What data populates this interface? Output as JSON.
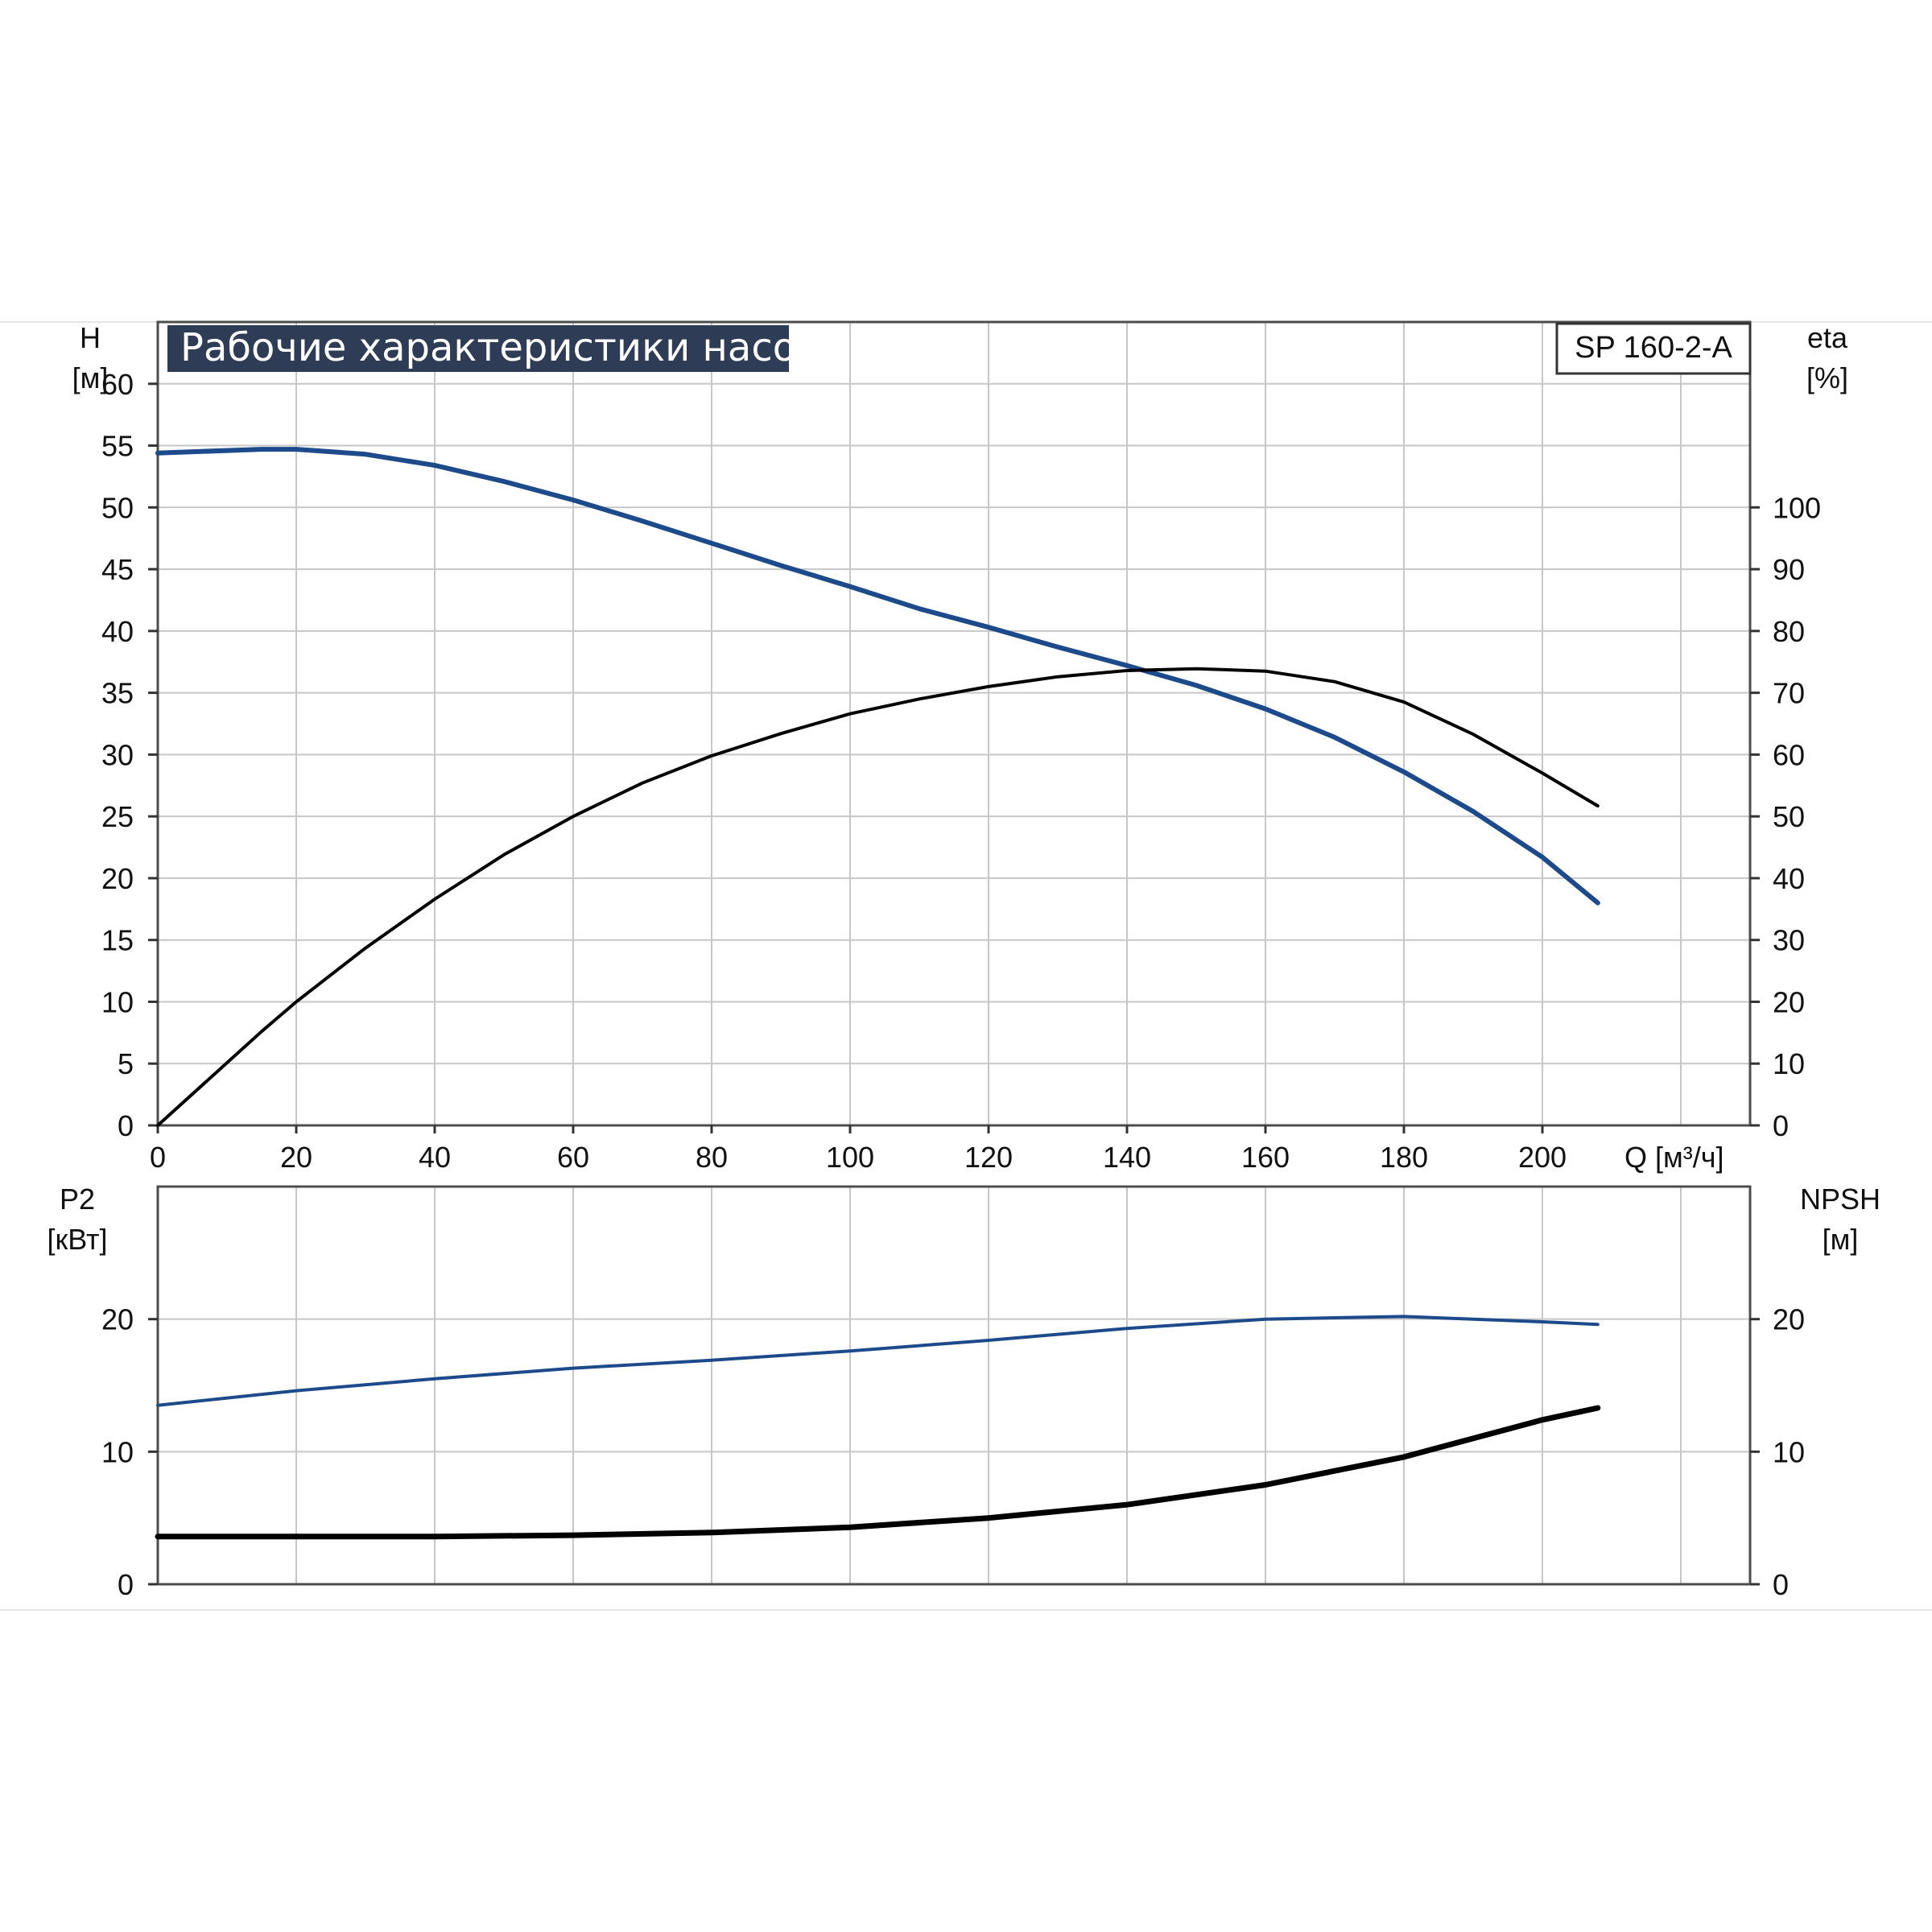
{
  "chart_data": [
    {
      "type": "line",
      "title": "Рабочие характеристики насоса",
      "model_label": "SP 160-2-A",
      "xlabel": "Q [м³/ч]",
      "ylabel": "H [м]",
      "ylabel_line1": "H",
      "ylabel_line2": "[м]",
      "y2label_line1": "eta",
      "y2label_line2": "[%]",
      "xlim": [
        0,
        230
      ],
      "ylim": [
        0,
        65
      ],
      "y2lim": [
        0,
        130
      ],
      "x_ticks": [
        "0",
        "20",
        "40",
        "60",
        "80",
        "100",
        "120",
        "140",
        "160",
        "180",
        "200"
      ],
      "y_ticks": [
        "0",
        "5",
        "10",
        "15",
        "20",
        "25",
        "30",
        "35",
        "40",
        "45",
        "50",
        "55",
        "60"
      ],
      "y2_ticks": [
        "0",
        "10",
        "20",
        "30",
        "40",
        "50",
        "60",
        "70",
        "80",
        "90",
        "100"
      ],
      "grid": true,
      "colors": {
        "head": "#1c4a8a",
        "efficiency": "#000000",
        "grid": "#c7c7c7",
        "title_bg": "#2e3d55"
      },
      "series": [
        {
          "key": "head",
          "axis": "left",
          "x": [
            0,
            15,
            20,
            30,
            40,
            50,
            60,
            70,
            80,
            90,
            100,
            110,
            120,
            130,
            140,
            150,
            160,
            170,
            180,
            190,
            200,
            208
          ],
          "values": [
            54.4,
            54.7,
            54.7,
            54.3,
            53.4,
            52.1,
            50.6,
            48.9,
            47.1,
            45.3,
            43.6,
            41.8,
            40.3,
            38.7,
            37.2,
            35.6,
            33.7,
            31.4,
            28.6,
            25.4,
            21.7,
            18.0
          ]
        },
        {
          "key": "efficiency",
          "axis": "right",
          "x": [
            0,
            15,
            20,
            30,
            40,
            50,
            60,
            70,
            80,
            90,
            100,
            110,
            120,
            130,
            140,
            150,
            160,
            170,
            180,
            190,
            200,
            208
          ],
          "values": [
            0,
            15.2,
            20.0,
            28.7,
            36.6,
            43.8,
            50.0,
            55.4,
            59.8,
            63.4,
            66.6,
            69.0,
            71.0,
            72.6,
            73.6,
            73.9,
            73.5,
            71.8,
            68.5,
            63.3,
            57.0,
            51.7
          ]
        }
      ]
    },
    {
      "type": "line",
      "xlabel": "",
      "ylabel": "P2 [кВт]",
      "ylabel_line1": "P2",
      "ylabel_line2": "[кВт]",
      "y2label_line1": "NPSH",
      "y2label_line2": "[м]",
      "xlim": [
        0,
        230
      ],
      "ylim": [
        0,
        30
      ],
      "y2lim": [
        0,
        30
      ],
      "y_ticks": [
        "0",
        "10",
        "20"
      ],
      "y2_ticks": [
        "0",
        "10",
        "20"
      ],
      "grid": true,
      "colors": {
        "power": "#1c4a8a",
        "npsh": "#000000"
      },
      "series": [
        {
          "key": "power",
          "axis": "left",
          "x": [
            0,
            20,
            40,
            60,
            80,
            100,
            120,
            140,
            160,
            180,
            200,
            208
          ],
          "values": [
            13.5,
            14.6,
            15.5,
            16.3,
            16.9,
            17.6,
            18.4,
            19.3,
            20.0,
            20.2,
            19.8,
            19.6
          ]
        },
        {
          "key": "npsh",
          "axis": "right",
          "x": [
            0,
            15,
            40,
            60,
            80,
            100,
            120,
            140,
            160,
            180,
            200,
            208
          ],
          "values": [
            3.6,
            3.6,
            3.6,
            3.7,
            3.9,
            4.3,
            5.0,
            6.0,
            7.5,
            9.6,
            12.4,
            13.3
          ]
        }
      ]
    }
  ]
}
